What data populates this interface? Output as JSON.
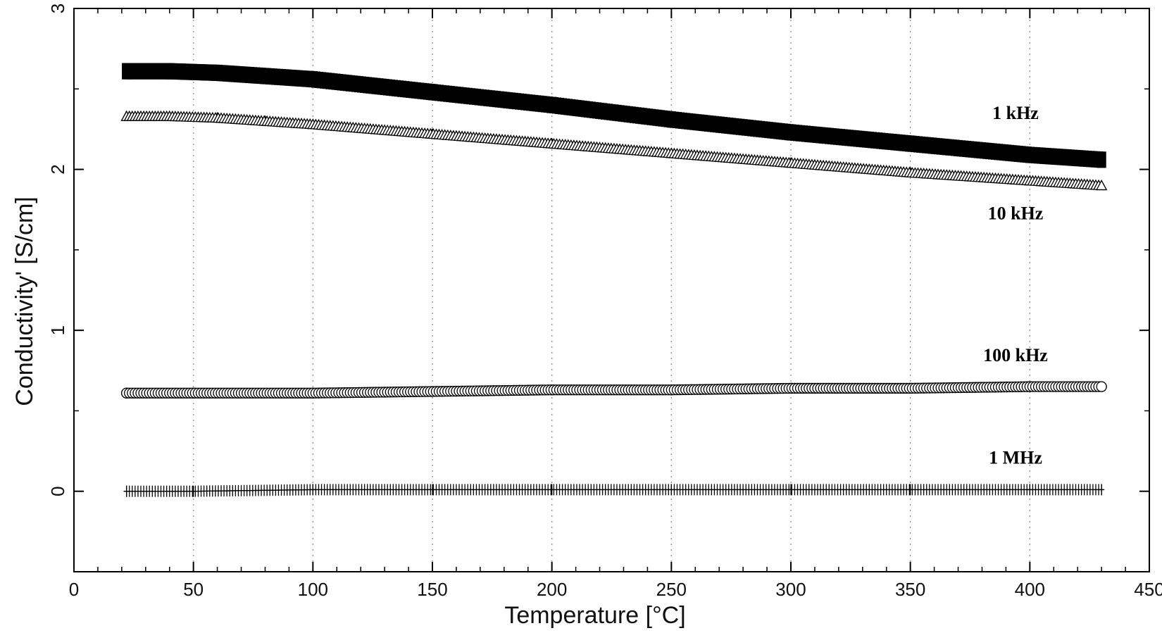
{
  "chart_data": {
    "type": "scatter",
    "title": "",
    "xlabel": "Temperature [°C]",
    "ylabel": "Conductivity' [S/cm]",
    "xlim": [
      0,
      450
    ],
    "ylim": [
      -0.5,
      3
    ],
    "xticks": [
      0,
      50,
      100,
      150,
      200,
      250,
      300,
      350,
      400,
      450
    ],
    "yticks": [
      0,
      1,
      2,
      3
    ],
    "grid": "vertical-dotted",
    "series": [
      {
        "name": "1 kHz",
        "marker": "square",
        "x": [
          22,
          40,
          60,
          80,
          100,
          150,
          200,
          250,
          300,
          350,
          400,
          430
        ],
        "y": [
          2.61,
          2.61,
          2.6,
          2.58,
          2.56,
          2.48,
          2.4,
          2.31,
          2.23,
          2.16,
          2.09,
          2.06
        ]
      },
      {
        "name": "10 kHz",
        "marker": "triangle",
        "x": [
          22,
          40,
          60,
          80,
          100,
          150,
          200,
          250,
          300,
          350,
          400,
          430
        ],
        "y": [
          2.33,
          2.33,
          2.32,
          2.3,
          2.28,
          2.22,
          2.16,
          2.1,
          2.04,
          1.98,
          1.93,
          1.9
        ]
      },
      {
        "name": "100 kHz",
        "marker": "circle",
        "x": [
          22,
          50,
          100,
          150,
          200,
          250,
          300,
          350,
          400,
          430
        ],
        "y": [
          0.61,
          0.61,
          0.61,
          0.62,
          0.63,
          0.63,
          0.64,
          0.64,
          0.65,
          0.65
        ]
      },
      {
        "name": "1 MHz",
        "marker": "plus",
        "x": [
          22,
          50,
          100,
          150,
          200,
          250,
          300,
          350,
          400,
          430
        ],
        "y": [
          0.0,
          0.0,
          0.01,
          0.01,
          0.01,
          0.01,
          0.01,
          0.01,
          0.01,
          0.01
        ]
      }
    ]
  }
}
